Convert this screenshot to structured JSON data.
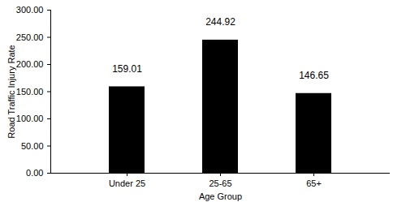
{
  "chart_data": {
    "type": "bar",
    "categories": [
      "Under 25",
      "25-65",
      "65+"
    ],
    "values": [
      159.01,
      244.92,
      146.65
    ],
    "color": "#000000",
    "xlabel": "Age Group",
    "ylabel": "Road Traffic Injury Rate",
    "ylim": [
      0,
      300
    ],
    "yticks": [
      {
        "value": 0,
        "label": "0.00"
      },
      {
        "value": 50,
        "label": "50.00"
      },
      {
        "value": 100,
        "label": "100.00"
      },
      {
        "value": 150,
        "label": "150.00"
      },
      {
        "value": 200,
        "label": "200.00"
      },
      {
        "value": 250,
        "label": "250.00"
      },
      {
        "value": 300,
        "label": "300.00"
      }
    ],
    "grid": false,
    "data_labels": true
  }
}
